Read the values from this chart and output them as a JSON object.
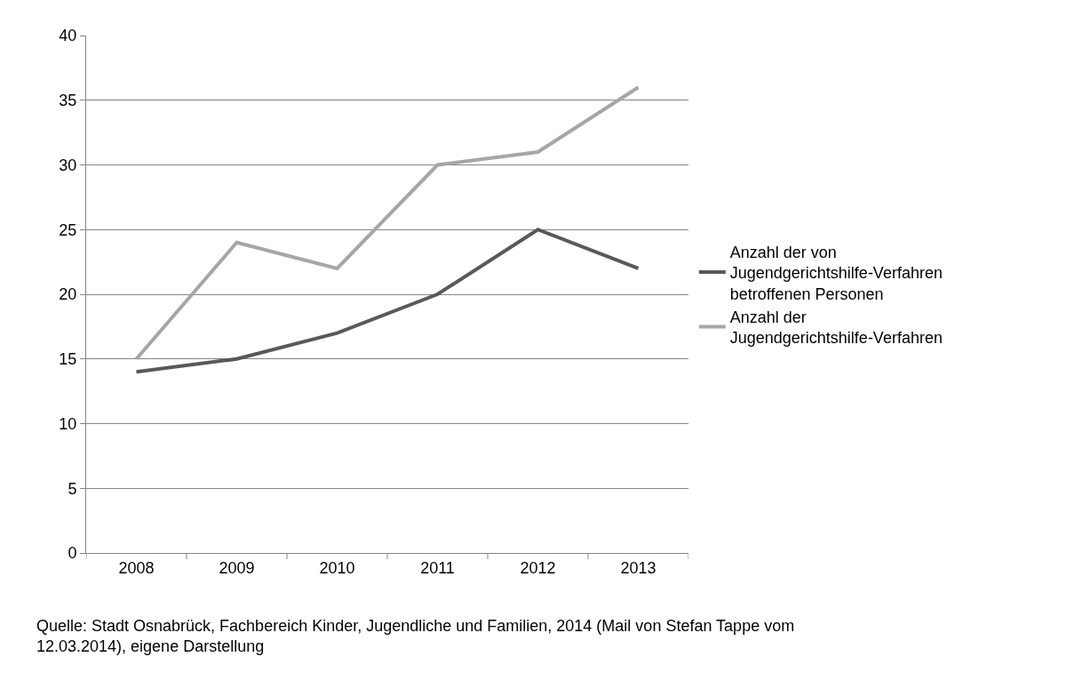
{
  "chart_data": {
    "type": "line",
    "categories": [
      "2008",
      "2009",
      "2010",
      "2011",
      "2012",
      "2013"
    ],
    "series": [
      {
        "name": "Anzahl der von Jugendgerichtshilfe-Verfahren betroffenen Personen",
        "color": "#595959",
        "values": [
          14,
          15,
          17,
          20,
          25,
          22
        ]
      },
      {
        "name": "Anzahl der Jugendgerichtshilfe-Verfahren",
        "color": "#a6a6a6",
        "values": [
          15,
          24,
          22,
          30,
          31,
          36
        ]
      }
    ],
    "ylim": [
      0,
      40
    ],
    "yticks": [
      0,
      5,
      10,
      15,
      20,
      25,
      30,
      35,
      40
    ],
    "grid": "y",
    "legend": "right",
    "marker": "none",
    "line_style": "solid",
    "annotations": [
      "Quelle: Stadt Osnabrück, Fachbereich Kinder, Jugendliche und Familien, 2014 (Mail von Stefan Tappe vom 12.03.2014), eigene Darstellung"
    ]
  }
}
